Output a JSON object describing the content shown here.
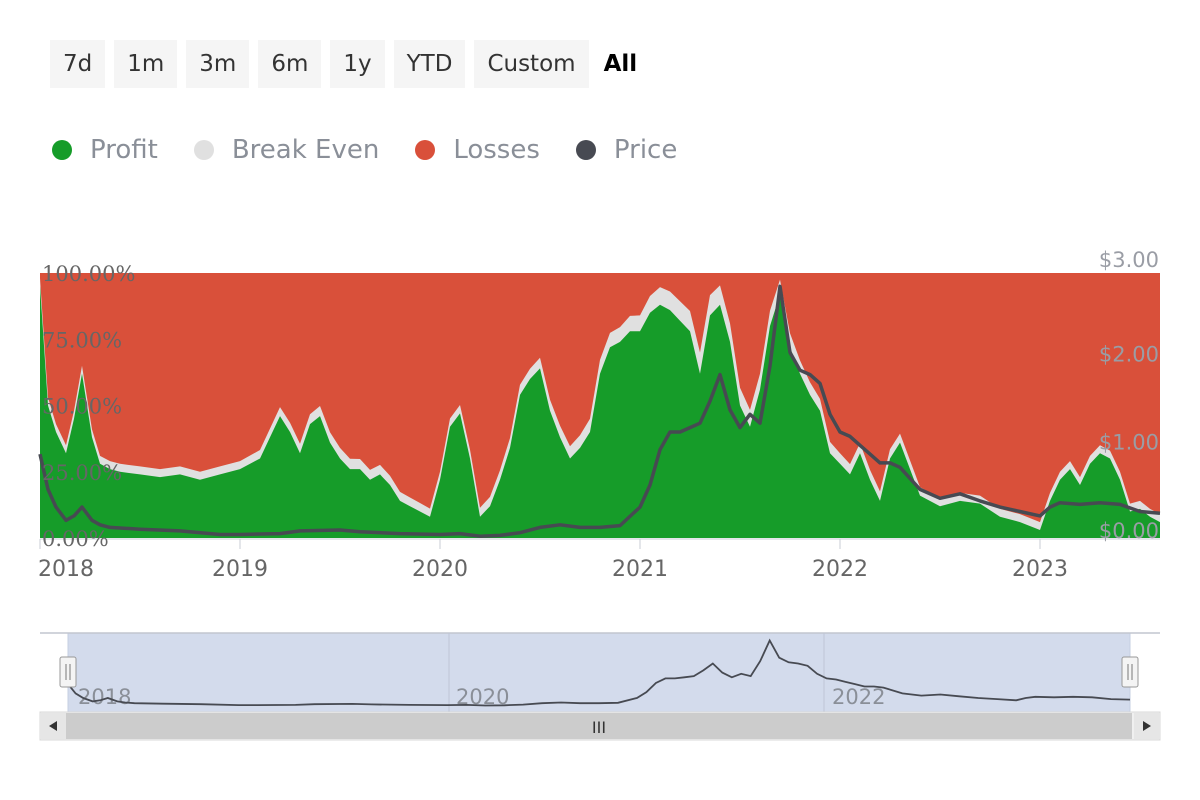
{
  "range_selector": {
    "buttons": [
      "7d",
      "1m",
      "3m",
      "6m",
      "1y",
      "YTD",
      "Custom",
      "All"
    ],
    "active": "All"
  },
  "legend": [
    {
      "label": "Profit",
      "color": "#169c29"
    },
    {
      "label": "Break Even",
      "color": "#e0e0e0"
    },
    {
      "label": "Losses",
      "color": "#d9503a"
    },
    {
      "label": "Price",
      "color": "#474a52"
    }
  ],
  "navigator": {
    "labels": [
      "2018",
      "2020",
      "2022"
    ],
    "scroll_grip": "III"
  },
  "chart_data": {
    "type": "area",
    "x_ticks": [
      "2018",
      "2019",
      "2020",
      "2021",
      "2022",
      "2023"
    ],
    "y_left_ticks": [
      "0.00%",
      "25.00%",
      "50.00%",
      "75.00%",
      "100.00%"
    ],
    "y_right_ticks": [
      "$0.00",
      "$1.00",
      "$2.00",
      "$3.00"
    ],
    "ylim_left": [
      0,
      100
    ],
    "ylim_right": [
      0,
      3
    ],
    "xlim": [
      2018,
      2023.6
    ],
    "series": [
      {
        "name": "Profit",
        "axis": "left",
        "stacked": true,
        "x": [
          2018.0,
          2018.04,
          2018.08,
          2018.13,
          2018.17,
          2018.21,
          2018.26,
          2018.3,
          2018.35,
          2018.4,
          2018.5,
          2018.6,
          2018.7,
          2018.8,
          2018.9,
          2019.0,
          2019.1,
          2019.15,
          2019.2,
          2019.25,
          2019.3,
          2019.35,
          2019.4,
          2019.45,
          2019.5,
          2019.55,
          2019.6,
          2019.65,
          2019.7,
          2019.75,
          2019.8,
          2019.85,
          2019.9,
          2019.95,
          2020.0,
          2020.05,
          2020.1,
          2020.15,
          2020.2,
          2020.25,
          2020.3,
          2020.35,
          2020.4,
          2020.45,
          2020.5,
          2020.55,
          2020.6,
          2020.65,
          2020.7,
          2020.75,
          2020.8,
          2020.85,
          2020.9,
          2020.95,
          2021.0,
          2021.05,
          2021.1,
          2021.15,
          2021.2,
          2021.25,
          2021.3,
          2021.35,
          2021.4,
          2021.45,
          2021.5,
          2021.55,
          2021.6,
          2021.65,
          2021.7,
          2021.75,
          2021.8,
          2021.85,
          2021.9,
          2021.95,
          2022.0,
          2022.05,
          2022.1,
          2022.15,
          2022.2,
          2022.25,
          2022.3,
          2022.4,
          2022.5,
          2022.6,
          2022.7,
          2022.8,
          2022.9,
          2023.0,
          2023.05,
          2023.1,
          2023.15,
          2023.2,
          2023.25,
          2023.3,
          2023.35,
          2023.4,
          2023.45,
          2023.5,
          2023.55,
          2023.6
        ],
        "values": [
          95,
          50,
          40,
          32,
          45,
          62,
          38,
          28,
          26,
          25,
          24,
          23,
          24,
          22,
          24,
          26,
          30,
          38,
          46,
          40,
          32,
          43,
          46,
          36,
          30,
          26,
          26,
          22,
          24,
          20,
          14,
          12,
          10,
          8,
          22,
          42,
          47,
          30,
          8,
          12,
          22,
          34,
          54,
          60,
          64,
          48,
          38,
          30,
          34,
          40,
          62,
          72,
          74,
          78,
          78,
          85,
          88,
          86,
          82,
          78,
          62,
          84,
          88,
          74,
          50,
          42,
          56,
          80,
          92,
          72,
          62,
          54,
          48,
          32,
          28,
          24,
          32,
          22,
          14,
          30,
          36,
          16,
          12,
          14,
          13,
          8,
          6,
          3,
          14,
          22,
          26,
          20,
          28,
          32,
          30,
          22,
          10,
          11,
          8,
          6
        ]
      },
      {
        "name": "Break Even",
        "axis": "left",
        "stacked": true,
        "x": [
          2018.0,
          2018.5,
          2019.0,
          2019.5,
          2020.0,
          2020.5,
          2021.0,
          2021.3,
          2021.6,
          2022.0,
          2022.5,
          2023.0,
          2023.6
        ],
        "values": [
          3,
          3,
          3,
          4,
          3,
          4,
          6,
          8,
          6,
          4,
          3,
          3,
          3
        ]
      },
      {
        "name": "Losses",
        "axis": "left",
        "stacked": true,
        "fill_to": 100
      },
      {
        "name": "Price",
        "axis": "right",
        "x": [
          2018.0,
          2018.04,
          2018.08,
          2018.13,
          2018.17,
          2018.21,
          2018.26,
          2018.3,
          2018.35,
          2018.5,
          2018.7,
          2018.9,
          2019.0,
          2019.2,
          2019.3,
          2019.5,
          2019.6,
          2019.8,
          2020.0,
          2020.1,
          2020.2,
          2020.3,
          2020.4,
          2020.5,
          2020.6,
          2020.7,
          2020.8,
          2020.9,
          2021.0,
          2021.05,
          2021.1,
          2021.15,
          2021.2,
          2021.25,
          2021.3,
          2021.35,
          2021.4,
          2021.45,
          2021.5,
          2021.55,
          2021.6,
          2021.65,
          2021.7,
          2021.75,
          2021.8,
          2021.85,
          2021.9,
          2021.95,
          2022.0,
          2022.05,
          2022.1,
          2022.15,
          2022.2,
          2022.25,
          2022.3,
          2022.4,
          2022.5,
          2022.6,
          2022.7,
          2022.8,
          2022.9,
          2023.0,
          2023.05,
          2023.1,
          2023.2,
          2023.3,
          2023.4,
          2023.5,
          2023.6
        ],
        "values": [
          0.95,
          0.55,
          0.35,
          0.2,
          0.25,
          0.35,
          0.2,
          0.15,
          0.12,
          0.1,
          0.08,
          0.04,
          0.04,
          0.05,
          0.08,
          0.09,
          0.07,
          0.05,
          0.04,
          0.05,
          0.02,
          0.03,
          0.06,
          0.12,
          0.15,
          0.12,
          0.12,
          0.14,
          0.35,
          0.6,
          1.0,
          1.2,
          1.2,
          1.25,
          1.3,
          1.55,
          1.85,
          1.45,
          1.25,
          1.4,
          1.3,
          1.95,
          2.85,
          2.1,
          1.9,
          1.85,
          1.75,
          1.4,
          1.2,
          1.15,
          1.05,
          0.95,
          0.85,
          0.85,
          0.8,
          0.55,
          0.45,
          0.5,
          0.42,
          0.35,
          0.3,
          0.25,
          0.35,
          0.4,
          0.38,
          0.4,
          0.38,
          0.3,
          0.28
        ]
      }
    ]
  }
}
